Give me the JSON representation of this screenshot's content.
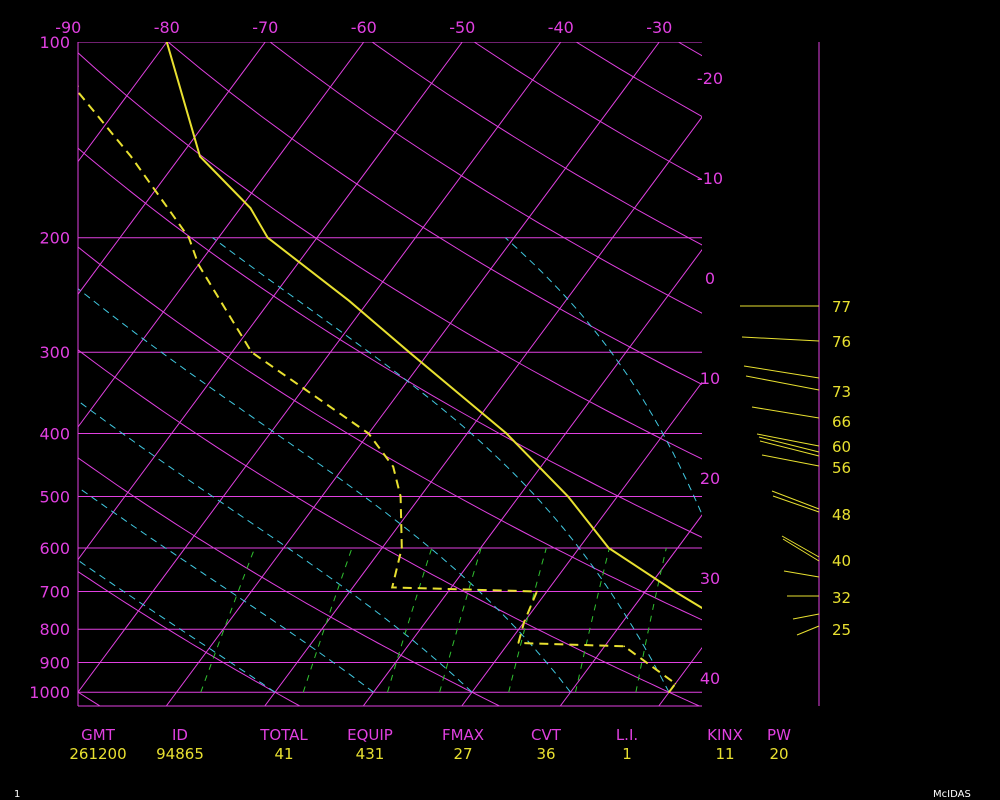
{
  "colors": {
    "frame": "#e040e0",
    "isotherm": "#e040e0",
    "isobar": "#e040e0",
    "dry_adiabat": "#e040e0",
    "moist_adiabat": "#40c8e0",
    "mixing_ratio": "#30c030",
    "temperature": "#e8e030",
    "dewpoint": "#e8e030",
    "wind": "#e8e030"
  },
  "chart_data": {
    "type": "line",
    "xlabel": "",
    "ylabel": "",
    "pressure_levels": [
      100,
      200,
      300,
      400,
      500,
      600,
      700,
      800,
      900,
      1000
    ],
    "pressure_range": [
      1050,
      100
    ],
    "top_temperature_labels": [
      "-90",
      "-80",
      "-70",
      "-60",
      "-50",
      "-40",
      "-30"
    ],
    "right_temperature_labels": [
      "-20",
      "-10",
      "0",
      "10",
      "20",
      "30",
      "40"
    ],
    "series": [
      {
        "type": "temperature",
        "style": "solid",
        "points": [
          {
            "p": 1000,
            "t": 25
          },
          {
            "p": 990,
            "t": 27.6
          },
          {
            "p": 925,
            "t": 27
          },
          {
            "p": 850,
            "t": 24
          },
          {
            "p": 775,
            "t": 20
          },
          {
            "p": 700,
            "t": 13
          },
          {
            "p": 600,
            "t": 3
          },
          {
            "p": 500,
            "t": -5
          },
          {
            "p": 400,
            "t": -16
          },
          {
            "p": 300,
            "t": -32
          },
          {
            "p": 250,
            "t": -42
          },
          {
            "p": 200,
            "t": -55
          },
          {
            "p": 180,
            "t": -59
          },
          {
            "p": 150,
            "t": -68
          },
          {
            "p": 100,
            "t": -80
          }
        ]
      },
      {
        "type": "dewpoint",
        "style": "dashed",
        "points": [
          {
            "p": 1000,
            "t": 20
          },
          {
            "p": 970,
            "t": 20
          },
          {
            "p": 850,
            "t": 12
          },
          {
            "p": 840,
            "t": 1
          },
          {
            "p": 780,
            "t": 0
          },
          {
            "p": 700,
            "t": -1
          },
          {
            "p": 690,
            "t": -16
          },
          {
            "p": 600,
            "t": -18
          },
          {
            "p": 500,
            "t": -22
          },
          {
            "p": 450,
            "t": -25
          },
          {
            "p": 400,
            "t": -30
          },
          {
            "p": 300,
            "t": -48
          },
          {
            "p": 220,
            "t": -60
          },
          {
            "p": 200,
            "t": -63
          },
          {
            "p": 150,
            "t": -75
          },
          {
            "p": 120,
            "t": -85
          },
          {
            "p": 100,
            "t": -90
          }
        ]
      }
    ],
    "wind_levels": [
      "77",
      "76",
      "73",
      "66",
      "60",
      "56",
      "48",
      "40",
      "32",
      "25"
    ]
  },
  "footer": {
    "labels": [
      "GMT",
      "ID",
      "TOTAL",
      "EQUIP",
      "FMAX",
      "CVT",
      "L.I.",
      "KINX",
      "PW"
    ],
    "values": [
      "261200",
      "94865",
      "41",
      "431",
      "27",
      "36",
      "1",
      "11",
      "20"
    ]
  },
  "corner_number": "1",
  "brand": "McIDAS"
}
